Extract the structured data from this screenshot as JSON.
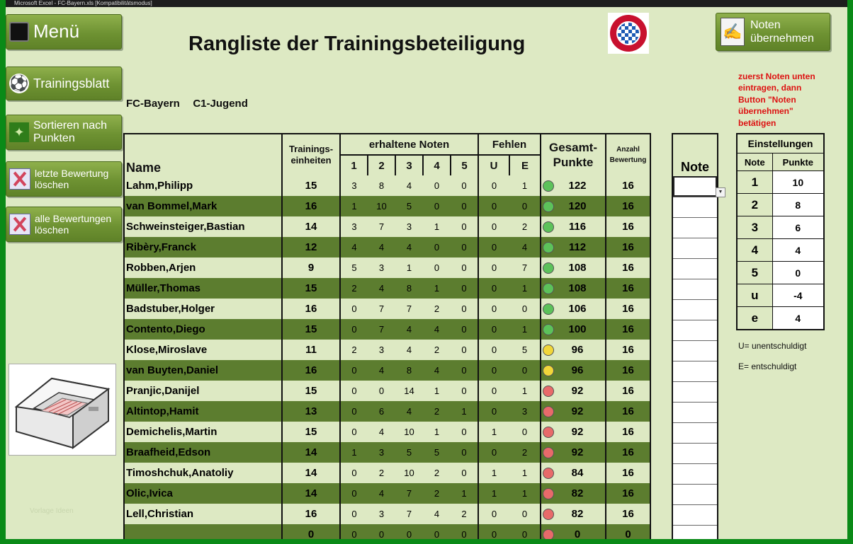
{
  "window_title": "Microsoft Excel - FC-Bayern.xls [Kompatibilitätsmodus]",
  "menu": {
    "menu_label": "Menü",
    "training_label": "Trainingsblatt",
    "sort_label": "Sortieren nach Punkten",
    "delete_last_label": "letzte Bewertung löschen",
    "delete_all_label": "alle Bewertungen löschen"
  },
  "header": {
    "title": "Rangliste der Trainingsbeteiligung",
    "subtitle": "FC-Bayern   C1-Jugend",
    "logo_text": "FC BAYERN MÜNCHEN",
    "apply_button": "Noten übernehmen",
    "hint": "zuerst Noten unten eintragen, dann Button \"Noten übernehmen\" betätigen"
  },
  "table": {
    "col_name": "Name",
    "col_sessions": "Trainings-einheiten",
    "col_grades_group": "erhaltene Noten",
    "grade_cols": [
      "1",
      "2",
      "3",
      "4",
      "5"
    ],
    "col_absent_group": "Fehlen",
    "absent_cols": [
      "U",
      "E"
    ],
    "col_total": "Gesamt-Punkte",
    "col_count": "Anzahl Bewertung",
    "rows": [
      {
        "name": "Lahm,Philipp",
        "sessions": "15",
        "g1": "3",
        "g2": "8",
        "g3": "4",
        "g4": "0",
        "g5": "0",
        "u": "0",
        "e": "1",
        "status": "green",
        "points": "122",
        "count": "16"
      },
      {
        "name": "van Bommel,Mark",
        "sessions": "16",
        "g1": "1",
        "g2": "10",
        "g3": "5",
        "g4": "0",
        "g5": "0",
        "u": "0",
        "e": "0",
        "status": "green",
        "points": "120",
        "count": "16"
      },
      {
        "name": "Schweinsteiger,Bastian",
        "sessions": "14",
        "g1": "3",
        "g2": "7",
        "g3": "3",
        "g4": "1",
        "g5": "0",
        "u": "0",
        "e": "2",
        "status": "green",
        "points": "116",
        "count": "16"
      },
      {
        "name": "Ribèry,Franck",
        "sessions": "12",
        "g1": "4",
        "g2": "4",
        "g3": "4",
        "g4": "0",
        "g5": "0",
        "u": "0",
        "e": "4",
        "status": "green",
        "points": "112",
        "count": "16"
      },
      {
        "name": "Robben,Arjen",
        "sessions": "9",
        "g1": "5",
        "g2": "3",
        "g3": "1",
        "g4": "0",
        "g5": "0",
        "u": "0",
        "e": "7",
        "status": "green",
        "points": "108",
        "count": "16"
      },
      {
        "name": "Müller,Thomas",
        "sessions": "15",
        "g1": "2",
        "g2": "4",
        "g3": "8",
        "g4": "1",
        "g5": "0",
        "u": "0",
        "e": "1",
        "status": "green",
        "points": "108",
        "count": "16"
      },
      {
        "name": "Badstuber,Holger",
        "sessions": "16",
        "g1": "0",
        "g2": "7",
        "g3": "7",
        "g4": "2",
        "g5": "0",
        "u": "0",
        "e": "0",
        "status": "green",
        "points": "106",
        "count": "16"
      },
      {
        "name": "Contento,Diego",
        "sessions": "15",
        "g1": "0",
        "g2": "7",
        "g3": "4",
        "g4": "4",
        "g5": "0",
        "u": "0",
        "e": "1",
        "status": "green",
        "points": "100",
        "count": "16"
      },
      {
        "name": "Klose,Miroslave",
        "sessions": "11",
        "g1": "2",
        "g2": "3",
        "g3": "4",
        "g4": "2",
        "g5": "0",
        "u": "0",
        "e": "5",
        "status": "yellow",
        "points": "96",
        "count": "16"
      },
      {
        "name": "van Buyten,Daniel",
        "sessions": "16",
        "g1": "0",
        "g2": "4",
        "g3": "8",
        "g4": "4",
        "g5": "0",
        "u": "0",
        "e": "0",
        "status": "yellow",
        "points": "96",
        "count": "16"
      },
      {
        "name": "Pranjic,Danijel",
        "sessions": "15",
        "g1": "0",
        "g2": "0",
        "g3": "14",
        "g4": "1",
        "g5": "0",
        "u": "0",
        "e": "1",
        "status": "red",
        "points": "92",
        "count": "16"
      },
      {
        "name": "Altintop,Hamit",
        "sessions": "13",
        "g1": "0",
        "g2": "6",
        "g3": "4",
        "g4": "2",
        "g5": "1",
        "u": "0",
        "e": "3",
        "status": "red",
        "points": "92",
        "count": "16"
      },
      {
        "name": "Demichelis,Martin",
        "sessions": "15",
        "g1": "0",
        "g2": "4",
        "g3": "10",
        "g4": "1",
        "g5": "0",
        "u": "1",
        "e": "0",
        "status": "red",
        "points": "92",
        "count": "16"
      },
      {
        "name": "Braafheid,Edson",
        "sessions": "14",
        "g1": "1",
        "g2": "3",
        "g3": "5",
        "g4": "5",
        "g5": "0",
        "u": "0",
        "e": "2",
        "status": "red",
        "points": "92",
        "count": "16"
      },
      {
        "name": "Timoshchuk,Anatoliy",
        "sessions": "14",
        "g1": "0",
        "g2": "2",
        "g3": "10",
        "g4": "2",
        "g5": "0",
        "u": "1",
        "e": "1",
        "status": "red",
        "points": "84",
        "count": "16"
      },
      {
        "name": "Olic,Ivica",
        "sessions": "14",
        "g1": "0",
        "g2": "4",
        "g3": "7",
        "g4": "2",
        "g5": "1",
        "u": "1",
        "e": "1",
        "status": "red",
        "points": "82",
        "count": "16"
      },
      {
        "name": "Lell,Christian",
        "sessions": "16",
        "g1": "0",
        "g2": "3",
        "g3": "7",
        "g4": "4",
        "g5": "2",
        "u": "0",
        "e": "0",
        "status": "red",
        "points": "82",
        "count": "16"
      },
      {
        "name": "",
        "sessions": "0",
        "g1": "0",
        "g2": "0",
        "g3": "0",
        "g4": "0",
        "g5": "0",
        "u": "0",
        "e": "0",
        "status": "red",
        "points": "0",
        "count": "0"
      }
    ]
  },
  "note_column": {
    "header": "Note"
  },
  "settings": {
    "title": "Einstellungen",
    "col_note": "Note",
    "col_points": "Punkte",
    "rows": [
      {
        "note": "1",
        "points": "10"
      },
      {
        "note": "2",
        "points": "8"
      },
      {
        "note": "3",
        "points": "6"
      },
      {
        "note": "4",
        "points": "4"
      },
      {
        "note": "5",
        "points": "0"
      },
      {
        "note": "u",
        "points": "-4"
      },
      {
        "note": "e",
        "points": "4"
      }
    ]
  },
  "legend": {
    "u": "U= unentschuldigt",
    "e": "E= entschuldigt"
  },
  "watermark": "Vorlage Ideen",
  "status_colors": {
    "green": "#5cc25a",
    "yellow": "#f1d63a",
    "red": "#e86a6a"
  }
}
